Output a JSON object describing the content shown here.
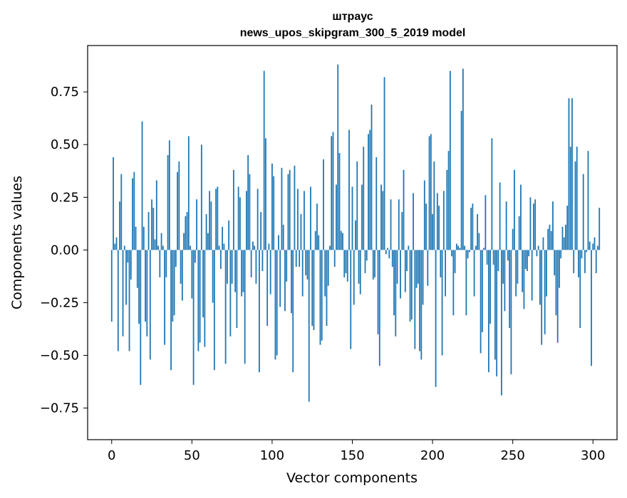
{
  "chart_data": {
    "type": "bar",
    "title_line1": "штраус",
    "title_line2": "news_upos_skipgram_300_5_2019 model",
    "xlabel": "Vector components",
    "ylabel": "Components values",
    "xlim": [
      -15,
      315
    ],
    "ylim": [
      -0.9,
      0.97
    ],
    "x_ticks": [
      0,
      50,
      100,
      150,
      200,
      250,
      300
    ],
    "x_tick_labels": [
      "0",
      "50",
      "100",
      "150",
      "200",
      "250",
      "300"
    ],
    "y_ticks": [
      -0.75,
      -0.5,
      -0.25,
      0.0,
      0.25,
      0.5,
      0.75
    ],
    "y_tick_labels": [
      "−0.75",
      "−0.50",
      "−0.25",
      "0.00",
      "0.25",
      "0.50",
      "0.75"
    ],
    "bar_color": "#1f77b4",
    "grid": false,
    "values": [
      -0.34,
      0.44,
      0.03,
      0.06,
      -0.48,
      0.23,
      0.36,
      -0.41,
      0.02,
      -0.26,
      -0.06,
      -0.48,
      -0.14,
      0.34,
      0.37,
      0.11,
      -0.18,
      -0.35,
      -0.64,
      0.61,
      0.11,
      -0.34,
      -0.41,
      0.18,
      -0.52,
      0.24,
      0.2,
      0.05,
      0.33,
      0.02,
      -0.13,
      0.08,
      0.02,
      -0.45,
      -0.13,
      0.45,
      0.52,
      -0.57,
      -0.34,
      -0.31,
      -0.08,
      0.37,
      0.42,
      -0.16,
      -0.24,
      0.08,
      0.16,
      0.18,
      0.54,
      0.02,
      -0.23,
      -0.64,
      -0.06,
      0.24,
      -0.48,
      -0.44,
      0.5,
      -0.32,
      -0.46,
      0.17,
      0.08,
      0.28,
      0.23,
      -0.25,
      -0.57,
      0.29,
      0.3,
      0.02,
      -0.09,
      0.11,
      0.03,
      -0.54,
      -0.16,
      0.14,
      -0.41,
      -0.16,
      0.38,
      -0.2,
      -0.37,
      0.3,
      0.25,
      -0.22,
      -0.2,
      -0.54,
      0.28,
      0.45,
      0.36,
      -0.13,
      0.04,
      0.02,
      -0.16,
      0.29,
      -0.58,
      0.18,
      -0.1,
      0.85,
      0.53,
      -0.36,
      0.03,
      -0.21,
      0.41,
      0.35,
      -0.52,
      -0.5,
      0.07,
      -0.27,
      0.39,
      0.12,
      -0.29,
      -0.15,
      0.36,
      0.38,
      -0.3,
      -0.58,
      0.4,
      -0.08,
      0.29,
      -0.08,
      0.17,
      -0.22,
      0.28,
      -0.12,
      -0.14,
      -0.72,
      0.3,
      -0.36,
      -0.38,
      0.09,
      0.22,
      0.07,
      -0.45,
      -0.43,
      0.43,
      -0.22,
      -0.36,
      -0.17,
      0.02,
      0.54,
      0.56,
      -0.08,
      0.31,
      0.88,
      0.46,
      0.09,
      0.08,
      -0.13,
      -0.11,
      -0.15,
      0.57,
      -0.47,
      0.3,
      -0.26,
      0.14,
      0.42,
      -0.16,
      -0.21,
      0.31,
      0.49,
      -0.11,
      -0.05,
      0.55,
      0.57,
      0.69,
      -0.14,
      -0.13,
      0.44,
      -0.4,
      -0.55,
      0.31,
      0.28,
      0.82,
      -0.02,
      0.01,
      -0.04,
      0.24,
      -0.08,
      -0.31,
      -0.41,
      -0.16,
      0.24,
      -0.23,
      0.18,
      0.38,
      -0.2,
      -0.1,
      0.02,
      -0.34,
      -0.33,
      0.27,
      -0.47,
      -0.18,
      -0.16,
      -0.48,
      -0.52,
      -0.26,
      0.33,
      0.22,
      -0.17,
      0.54,
      0.55,
      0.17,
      0.42,
      -0.65,
      0.27,
      0.21,
      -0.13,
      -0.5,
      0.28,
      -0.22,
      0.38,
      0.47,
      0.85,
      -0.03,
      -0.31,
      -0.11,
      0.03,
      0.02,
      0.01,
      0.66,
      0.86,
      0.02,
      -0.31,
      -0.04,
      -0.01,
      0.2,
      0.22,
      -0.22,
      0.02,
      0.17,
      0.08,
      -0.49,
      -0.39,
      0.01,
      0.26,
      -0.07,
      -0.58,
      -0.35,
      0.53,
      -0.07,
      -0.52,
      -0.6,
      -0.1,
      0.32,
      -0.69,
      -0.16,
      -0.29,
      0.23,
      -0.05,
      -0.37,
      -0.59,
      0.1,
      0.38,
      -0.22,
      -0.16,
      0.16,
      0.31,
      -0.2,
      -0.28,
      -0.09,
      -0.1,
      -0.03,
      0.25,
      -0.24,
      0.22,
      0.24,
      -0.03,
      0.02,
      -0.26,
      -0.45,
      0.06,
      -0.4,
      -0.22,
      0.1,
      0.12,
      0.09,
      0.23,
      -0.12,
      -0.31,
      -0.44,
      -0.18,
      -0.04,
      0.11,
      0.06,
      0.12,
      0.21,
      0.72,
      0.49,
      0.72,
      -0.11,
      0.42,
      0.49,
      -0.13,
      -0.37,
      -0.04,
      0.36,
      -0.11,
      -0.01,
      0.47,
      0.04,
      -0.55,
      0.03,
      0.06,
      -0.11,
      0.02,
      0.2
    ]
  }
}
